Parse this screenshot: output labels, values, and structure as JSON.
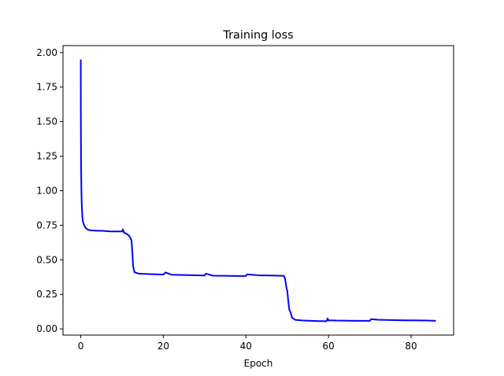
{
  "chart_data": {
    "type": "line",
    "title": "Training loss",
    "xlabel": "Epoch",
    "ylabel": "",
    "xlim": [
      -4.3,
      90.3
    ],
    "ylim": [
      -0.045,
      2.05
    ],
    "grid": false,
    "x_ticks": [
      0,
      20,
      40,
      60,
      80
    ],
    "x_tick_labels": [
      "0",
      "20",
      "40",
      "60",
      "80"
    ],
    "y_ticks": [
      0.0,
      0.25,
      0.5,
      0.75,
      1.0,
      1.25,
      1.5,
      1.75,
      2.0
    ],
    "y_tick_labels": [
      "0.00",
      "0.25",
      "0.50",
      "0.75",
      "1.00",
      "1.25",
      "1.50",
      "1.75",
      "2.00"
    ],
    "series": [
      {
        "color": "#0000ff",
        "x": [
          0,
          0.02,
          0.05,
          0.08,
          0.12,
          0.17,
          0.22,
          0.3,
          0.4,
          0.5,
          0.7,
          0.9,
          1.2,
          1.6,
          2,
          3,
          4,
          5,
          6,
          7,
          8,
          9,
          10,
          10.2,
          10.5,
          11,
          11.5,
          12,
          12.3,
          12.5,
          12.7,
          13,
          13.5,
          14,
          15,
          17,
          19,
          20,
          20.5,
          22,
          25,
          28,
          30,
          30.3,
          32,
          35,
          38,
          40,
          40.3,
          43,
          46,
          48,
          49.2,
          49.5,
          49.8,
          50.0,
          50.2,
          50.5,
          50.8,
          51.2,
          52,
          54,
          56,
          58,
          59.5,
          59.8,
          60,
          60.3,
          62,
          65,
          68,
          70,
          70.3,
          72,
          75,
          78,
          80,
          82,
          84,
          86
        ],
        "y": [
          1.95,
          1.6,
          1.35,
          1.2,
          1.08,
          0.98,
          0.92,
          0.86,
          0.81,
          0.78,
          0.76,
          0.745,
          0.73,
          0.72,
          0.715,
          0.712,
          0.71,
          0.71,
          0.708,
          0.706,
          0.705,
          0.705,
          0.705,
          0.72,
          0.695,
          0.69,
          0.68,
          0.66,
          0.64,
          0.55,
          0.45,
          0.41,
          0.405,
          0.4,
          0.398,
          0.396,
          0.394,
          0.393,
          0.408,
          0.392,
          0.39,
          0.388,
          0.386,
          0.4,
          0.385,
          0.384,
          0.383,
          0.383,
          0.395,
          0.388,
          0.386,
          0.385,
          0.384,
          0.36,
          0.3,
          0.28,
          0.22,
          0.14,
          0.12,
          0.08,
          0.065,
          0.06,
          0.058,
          0.056,
          0.055,
          0.075,
          0.06,
          0.062,
          0.06,
          0.059,
          0.058,
          0.058,
          0.07,
          0.066,
          0.064,
          0.062,
          0.062,
          0.061,
          0.06,
          0.058
        ]
      }
    ]
  }
}
